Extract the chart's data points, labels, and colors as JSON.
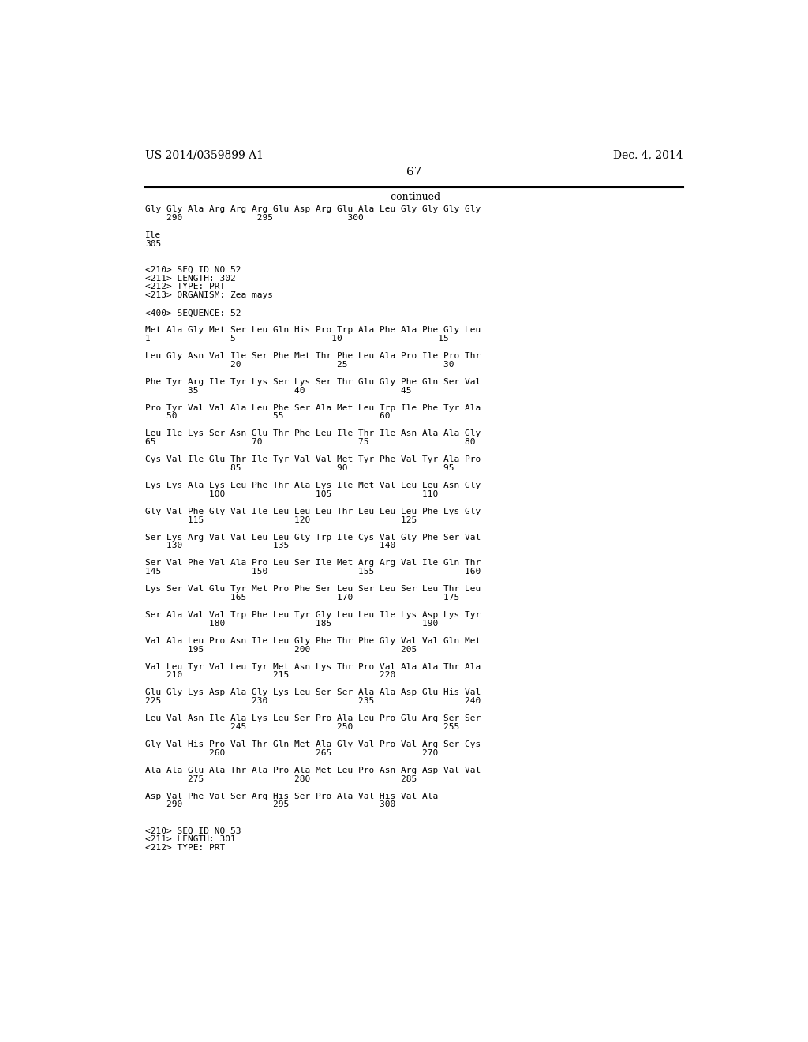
{
  "header_left": "US 2014/0359899 A1",
  "header_right": "Dec. 4, 2014",
  "page_number": "67",
  "continued_text": "-continued",
  "background_color": "#ffffff",
  "text_color": "#000000",
  "mono_font_size": 8.0,
  "header_font_size": 10,
  "page_font_size": 11,
  "continued_font_size": 9,
  "lines": [
    "Gly Gly Ala Arg Arg Arg Glu Asp Arg Glu Ala Leu Gly Gly Gly Gly",
    "    290              295              300",
    "",
    "Ile",
    "305",
    "",
    "",
    "<210> SEQ ID NO 52",
    "<211> LENGTH: 302",
    "<212> TYPE: PRT",
    "<213> ORGANISM: Zea mays",
    "",
    "<400> SEQUENCE: 52",
    "",
    "Met Ala Gly Met Ser Leu Gln His Pro Trp Ala Phe Ala Phe Gly Leu",
    "1               5                  10                  15",
    "",
    "Leu Gly Asn Val Ile Ser Phe Met Thr Phe Leu Ala Pro Ile Pro Thr",
    "                20                  25                  30",
    "",
    "Phe Tyr Arg Ile Tyr Lys Ser Lys Ser Thr Glu Gly Phe Gln Ser Val",
    "        35                  40                  45",
    "",
    "Pro Tyr Val Val Ala Leu Phe Ser Ala Met Leu Trp Ile Phe Tyr Ala",
    "    50                  55                  60",
    "",
    "Leu Ile Lys Ser Asn Glu Thr Phe Leu Ile Thr Ile Asn Ala Ala Gly",
    "65                  70                  75                  80",
    "",
    "Cys Val Ile Glu Thr Ile Tyr Val Val Met Tyr Phe Val Tyr Ala Pro",
    "                85                  90                  95",
    "",
    "Lys Lys Ala Lys Leu Phe Thr Ala Lys Ile Met Val Leu Leu Asn Gly",
    "            100                 105                 110",
    "",
    "Gly Val Phe Gly Val Ile Leu Leu Leu Thr Leu Leu Leu Phe Lys Gly",
    "        115                 120                 125",
    "",
    "Ser Lys Arg Val Val Leu Leu Gly Trp Ile Cys Val Gly Phe Ser Val",
    "    130                 135                 140",
    "",
    "Ser Val Phe Val Ala Pro Leu Ser Ile Met Arg Arg Val Ile Gln Thr",
    "145                 150                 155                 160",
    "",
    "Lys Ser Val Glu Tyr Met Pro Phe Ser Leu Ser Leu Ser Leu Thr Leu",
    "                165                 170                 175",
    "",
    "Ser Ala Val Val Trp Phe Leu Tyr Gly Leu Leu Ile Lys Asp Lys Tyr",
    "            180                 185                 190",
    "",
    "Val Ala Leu Pro Asn Ile Leu Gly Phe Thr Phe Gly Val Val Gln Met",
    "        195                 200                 205",
    "",
    "Val Leu Tyr Val Leu Tyr Met Asn Lys Thr Pro Val Ala Ala Thr Ala",
    "    210                 215                 220",
    "",
    "Glu Gly Lys Asp Ala Gly Lys Leu Ser Ser Ala Ala Asp Glu His Val",
    "225                 230                 235                 240",
    "",
    "Leu Val Asn Ile Ala Lys Leu Ser Pro Ala Leu Pro Glu Arg Ser Ser",
    "                245                 250                 255",
    "",
    "Gly Val His Pro Val Thr Gln Met Ala Gly Val Pro Val Arg Ser Cys",
    "            260                 265                 270",
    "",
    "Ala Ala Glu Ala Thr Ala Pro Ala Met Leu Pro Asn Arg Asp Val Val",
    "        275                 280                 285",
    "",
    "Asp Val Phe Val Ser Arg His Ser Pro Ala Val His Val Ala",
    "    290                 295                 300",
    "",
    "",
    "<210> SEQ ID NO 53",
    "<211> LENGTH: 301",
    "<212> TYPE: PRT"
  ]
}
